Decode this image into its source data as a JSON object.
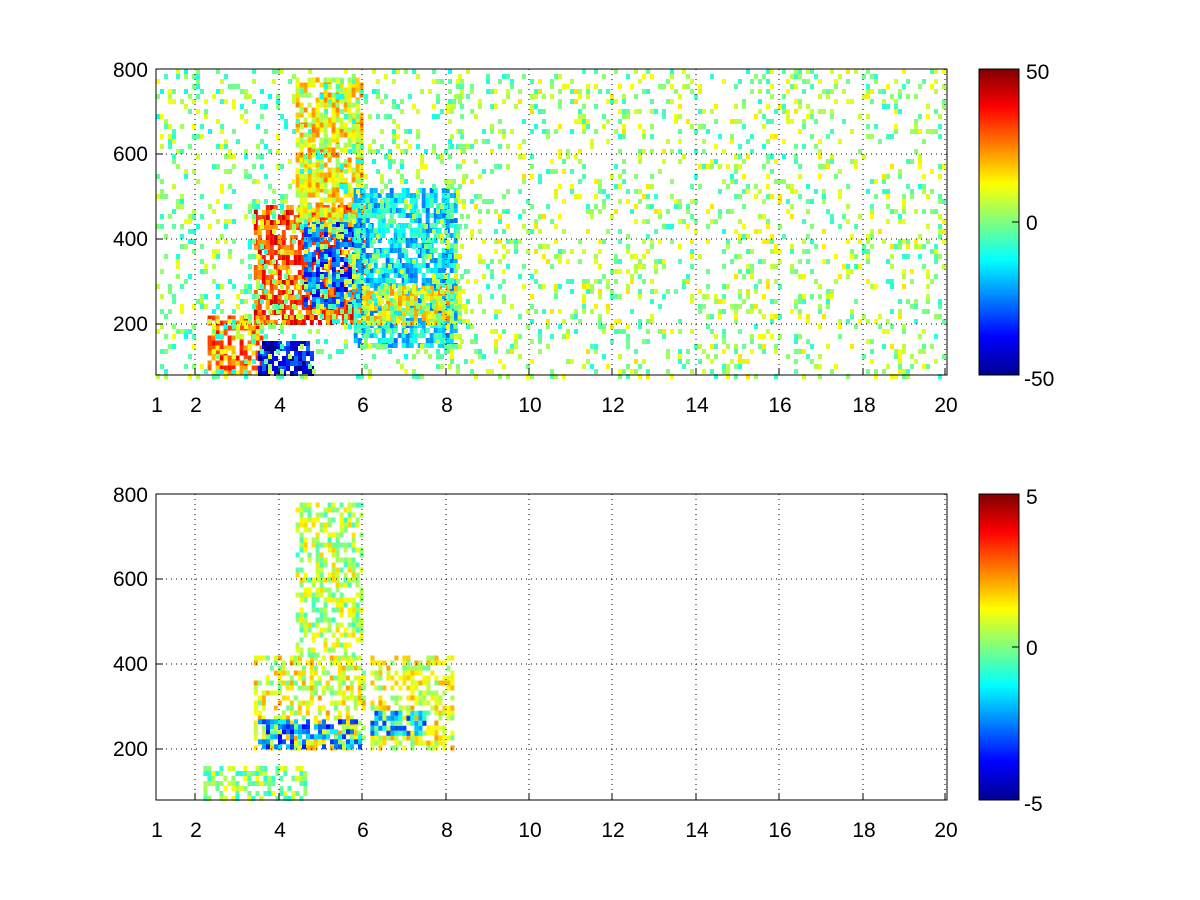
{
  "chart_data": [
    {
      "type": "heatmap",
      "title": "",
      "xlabel": "",
      "ylabel": "",
      "x_scale": "log",
      "xlim": [
        1,
        20
      ],
      "ylim": [
        80,
        800
      ],
      "x_ticks": [
        1,
        2,
        4,
        6,
        8,
        10,
        12,
        14,
        16,
        18,
        20
      ],
      "x_tick_labels": [
        "1",
        "2",
        "4",
        "6",
        "8",
        "10",
        "12",
        "14",
        "16",
        "18",
        "20"
      ],
      "y_ticks": [
        200,
        400,
        600,
        800
      ],
      "y_tick_labels": [
        "200",
        "400",
        "600",
        "800"
      ],
      "grid": "dotted",
      "colormap": "jet",
      "colorbar": {
        "range": [
          -50,
          50
        ],
        "ticks": [
          50,
          0,
          -50
        ],
        "tick_labels": [
          "50",
          "0",
          "-50"
        ]
      },
      "features": [
        {
          "x": [
            3.4,
            6.0
          ],
          "y": [
            200,
            480
          ],
          "value": 30
        },
        {
          "x": [
            4.4,
            6.0
          ],
          "y": [
            420,
            780
          ],
          "value": 14
        },
        {
          "x": [
            2.3,
            3.6
          ],
          "y": [
            80,
            220
          ],
          "value": 25
        },
        {
          "x": [
            4.6,
            6.0
          ],
          "y": [
            240,
            440
          ],
          "value": -30
        },
        {
          "x": [
            3.5,
            4.8
          ],
          "y": [
            85,
            160
          ],
          "value": -38
        },
        {
          "x": [
            5.8,
            8.2
          ],
          "y": [
            150,
            520
          ],
          "value": -15
        },
        {
          "x": [
            6.0,
            8.3
          ],
          "y": [
            200,
            290
          ],
          "value": 12
        },
        {
          "x": [
            1.0,
            8.5
          ],
          "y": [
            80,
            800
          ],
          "value": 0
        },
        {
          "x": [
            8.0,
            20.0
          ],
          "y": [
            80,
            800
          ],
          "value": 3
        }
      ]
    },
    {
      "type": "heatmap",
      "title": "",
      "xlabel": "",
      "ylabel": "",
      "x_scale": "log",
      "xlim": [
        1,
        20
      ],
      "ylim": [
        80,
        800
      ],
      "x_ticks": [
        1,
        2,
        4,
        6,
        8,
        10,
        12,
        14,
        16,
        18,
        20
      ],
      "x_tick_labels": [
        "1",
        "2",
        "4",
        "6",
        "8",
        "10",
        "12",
        "14",
        "16",
        "18",
        "20"
      ],
      "y_ticks": [
        200,
        400,
        600,
        800
      ],
      "y_tick_labels": [
        "200",
        "400",
        "600",
        "800"
      ],
      "grid": "dotted",
      "colormap": "jet",
      "colorbar": {
        "range": [
          -5,
          5
        ],
        "ticks": [
          5,
          0,
          -5
        ],
        "tick_labels": [
          "5",
          "0",
          "-5"
        ]
      },
      "features": [
        {
          "x": [
            3.4,
            6.0
          ],
          "y": [
            200,
            420
          ],
          "value": 1
        },
        {
          "x": [
            3.5,
            6.0
          ],
          "y": [
            210,
            270
          ],
          "value": -2.5
        },
        {
          "x": [
            4.4,
            6.0
          ],
          "y": [
            420,
            780
          ],
          "value": 0.5
        },
        {
          "x": [
            2.2,
            4.6
          ],
          "y": [
            85,
            160
          ],
          "value": 0.2
        },
        {
          "x": [
            6.2,
            8.2
          ],
          "y": [
            200,
            420
          ],
          "value": 1
        },
        {
          "x": [
            6.2,
            7.5
          ],
          "y": [
            240,
            290
          ],
          "value": -2
        }
      ]
    }
  ]
}
